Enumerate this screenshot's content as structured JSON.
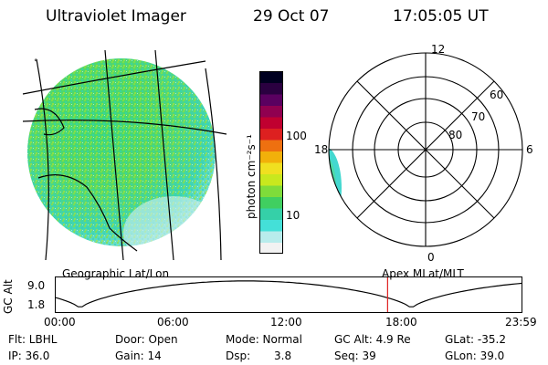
{
  "header": {
    "instrument": "Ultraviolet Imager",
    "date": "29 Oct 07",
    "time": "17:05:05 UT"
  },
  "colorbar": {
    "unit_label": "photon cm⁻²s⁻¹",
    "ticks": [
      "100",
      "10"
    ],
    "colors": [
      "#f2f2f2",
      "#b8ecec",
      "#44e0d8",
      "#35d0a8",
      "#40cf60",
      "#7fdc3a",
      "#c8e81e",
      "#f0e020",
      "#f2b00a",
      "#ee7010",
      "#dd2020",
      "#c00030",
      "#900050",
      "#5a0060",
      "#2a0040",
      "#000020"
    ]
  },
  "map": {
    "caption": "Geographic Lat/Lon",
    "tiny_marker": "°"
  },
  "polar": {
    "caption": "Apex MLat/MLT",
    "hour_labels": {
      "top": "12",
      "bottom": "0",
      "left": "18",
      "right": "6"
    },
    "lat_labels": [
      "60",
      "70",
      "80"
    ]
  },
  "altitude_plot": {
    "ylabel": "GC Alt",
    "ymax": "9.0",
    "ymin": "1.8",
    "x_ticks": [
      "00:00",
      "06:00",
      "12:00",
      "18:00",
      "23:59"
    ],
    "current_time_marker_hour": 17.08
  },
  "info": {
    "row1": {
      "filter": "Flt: LBHL",
      "door": "Door: Open",
      "mode": "Mode: Normal",
      "gc_alt": "GC Alt: 4.9 Re",
      "glat": "GLat: -35.2"
    },
    "row2": {
      "ip": "IP: 36.0",
      "gain": "Gain: 14",
      "dsp_label": "Dsp:",
      "dsp_value": "3.8",
      "seq": "Seq: 39",
      "glon": "GLon: 39.0"
    }
  }
}
